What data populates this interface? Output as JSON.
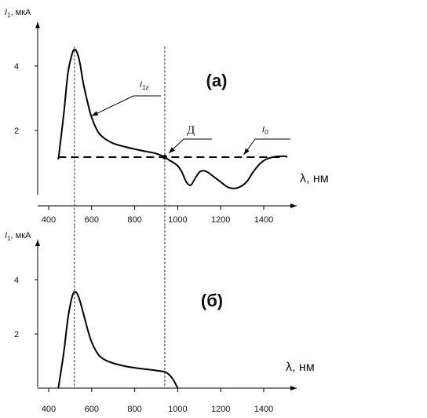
{
  "chart_data": [
    {
      "type": "line",
      "panel_label": "(а)",
      "ylabel_main": "I",
      "ylabel_sub": "1",
      "ylabel_unit": ", мкА",
      "xlabel": "λ, нм",
      "xlim": [
        400,
        1500
      ],
      "ylim": [
        0,
        5
      ],
      "x_ticks": [
        400,
        600,
        800,
        1000,
        1200,
        1400
      ],
      "y_ticks": [
        2,
        4
      ],
      "series": [
        {
          "name": "I1г",
          "x": [
            445,
            470,
            490,
            510,
            520,
            530,
            545,
            560,
            580,
            600,
            630,
            660,
            700,
            750,
            800,
            850,
            900,
            940,
            960,
            980,
            1000,
            1020,
            1040,
            1060,
            1080,
            1100,
            1120,
            1140,
            1170,
            1200,
            1230,
            1260,
            1290,
            1320,
            1350,
            1380,
            1410,
            1450,
            1490,
            1510
          ],
          "y": [
            1.1,
            2.5,
            3.8,
            4.4,
            4.5,
            4.45,
            4.1,
            3.5,
            2.9,
            2.4,
            1.95,
            1.75,
            1.6,
            1.5,
            1.42,
            1.35,
            1.28,
            1.17,
            1.08,
            1.0,
            0.9,
            0.7,
            0.4,
            0.3,
            0.5,
            0.7,
            0.75,
            0.7,
            0.55,
            0.4,
            0.25,
            0.2,
            0.25,
            0.4,
            0.7,
            0.95,
            1.1,
            1.18,
            1.2,
            1.18
          ]
        },
        {
          "name": "I0",
          "style": "dashed",
          "x": [
            400,
            1500
          ],
          "y": [
            1.17,
            1.17
          ]
        }
      ],
      "annotations": [
        {
          "label_main": "I",
          "label_sub": "1г"
        },
        {
          "label_main": "Д"
        },
        {
          "label_main": "I",
          "label_sub": "0"
        }
      ],
      "marker_point": {
        "x": 940,
        "y": 1.17
      },
      "reference_lines_x": [
        520,
        940
      ]
    },
    {
      "type": "line",
      "panel_label": "(б)",
      "ylabel_main": "I",
      "ylabel_sub": "1",
      "ylabel_unit": ", мкА",
      "xlabel": "λ, нм",
      "xlim": [
        400,
        1500
      ],
      "ylim": [
        0,
        5
      ],
      "x_ticks": [
        400,
        600,
        800,
        1000,
        1200,
        1400
      ],
      "y_ticks": [
        2,
        4
      ],
      "series": [
        {
          "name": "",
          "x": [
            445,
            470,
            490,
            510,
            525,
            540,
            560,
            580,
            600,
            630,
            660,
            700,
            750,
            800,
            850,
            900,
            940,
            960,
            980,
            1000
          ],
          "y": [
            0,
            1.3,
            2.6,
            3.4,
            3.55,
            3.35,
            2.8,
            2.2,
            1.7,
            1.25,
            1.05,
            0.92,
            0.82,
            0.75,
            0.7,
            0.65,
            0.6,
            0.5,
            0.3,
            0.0
          ]
        }
      ],
      "reference_lines_x": [
        520,
        940
      ]
    }
  ]
}
